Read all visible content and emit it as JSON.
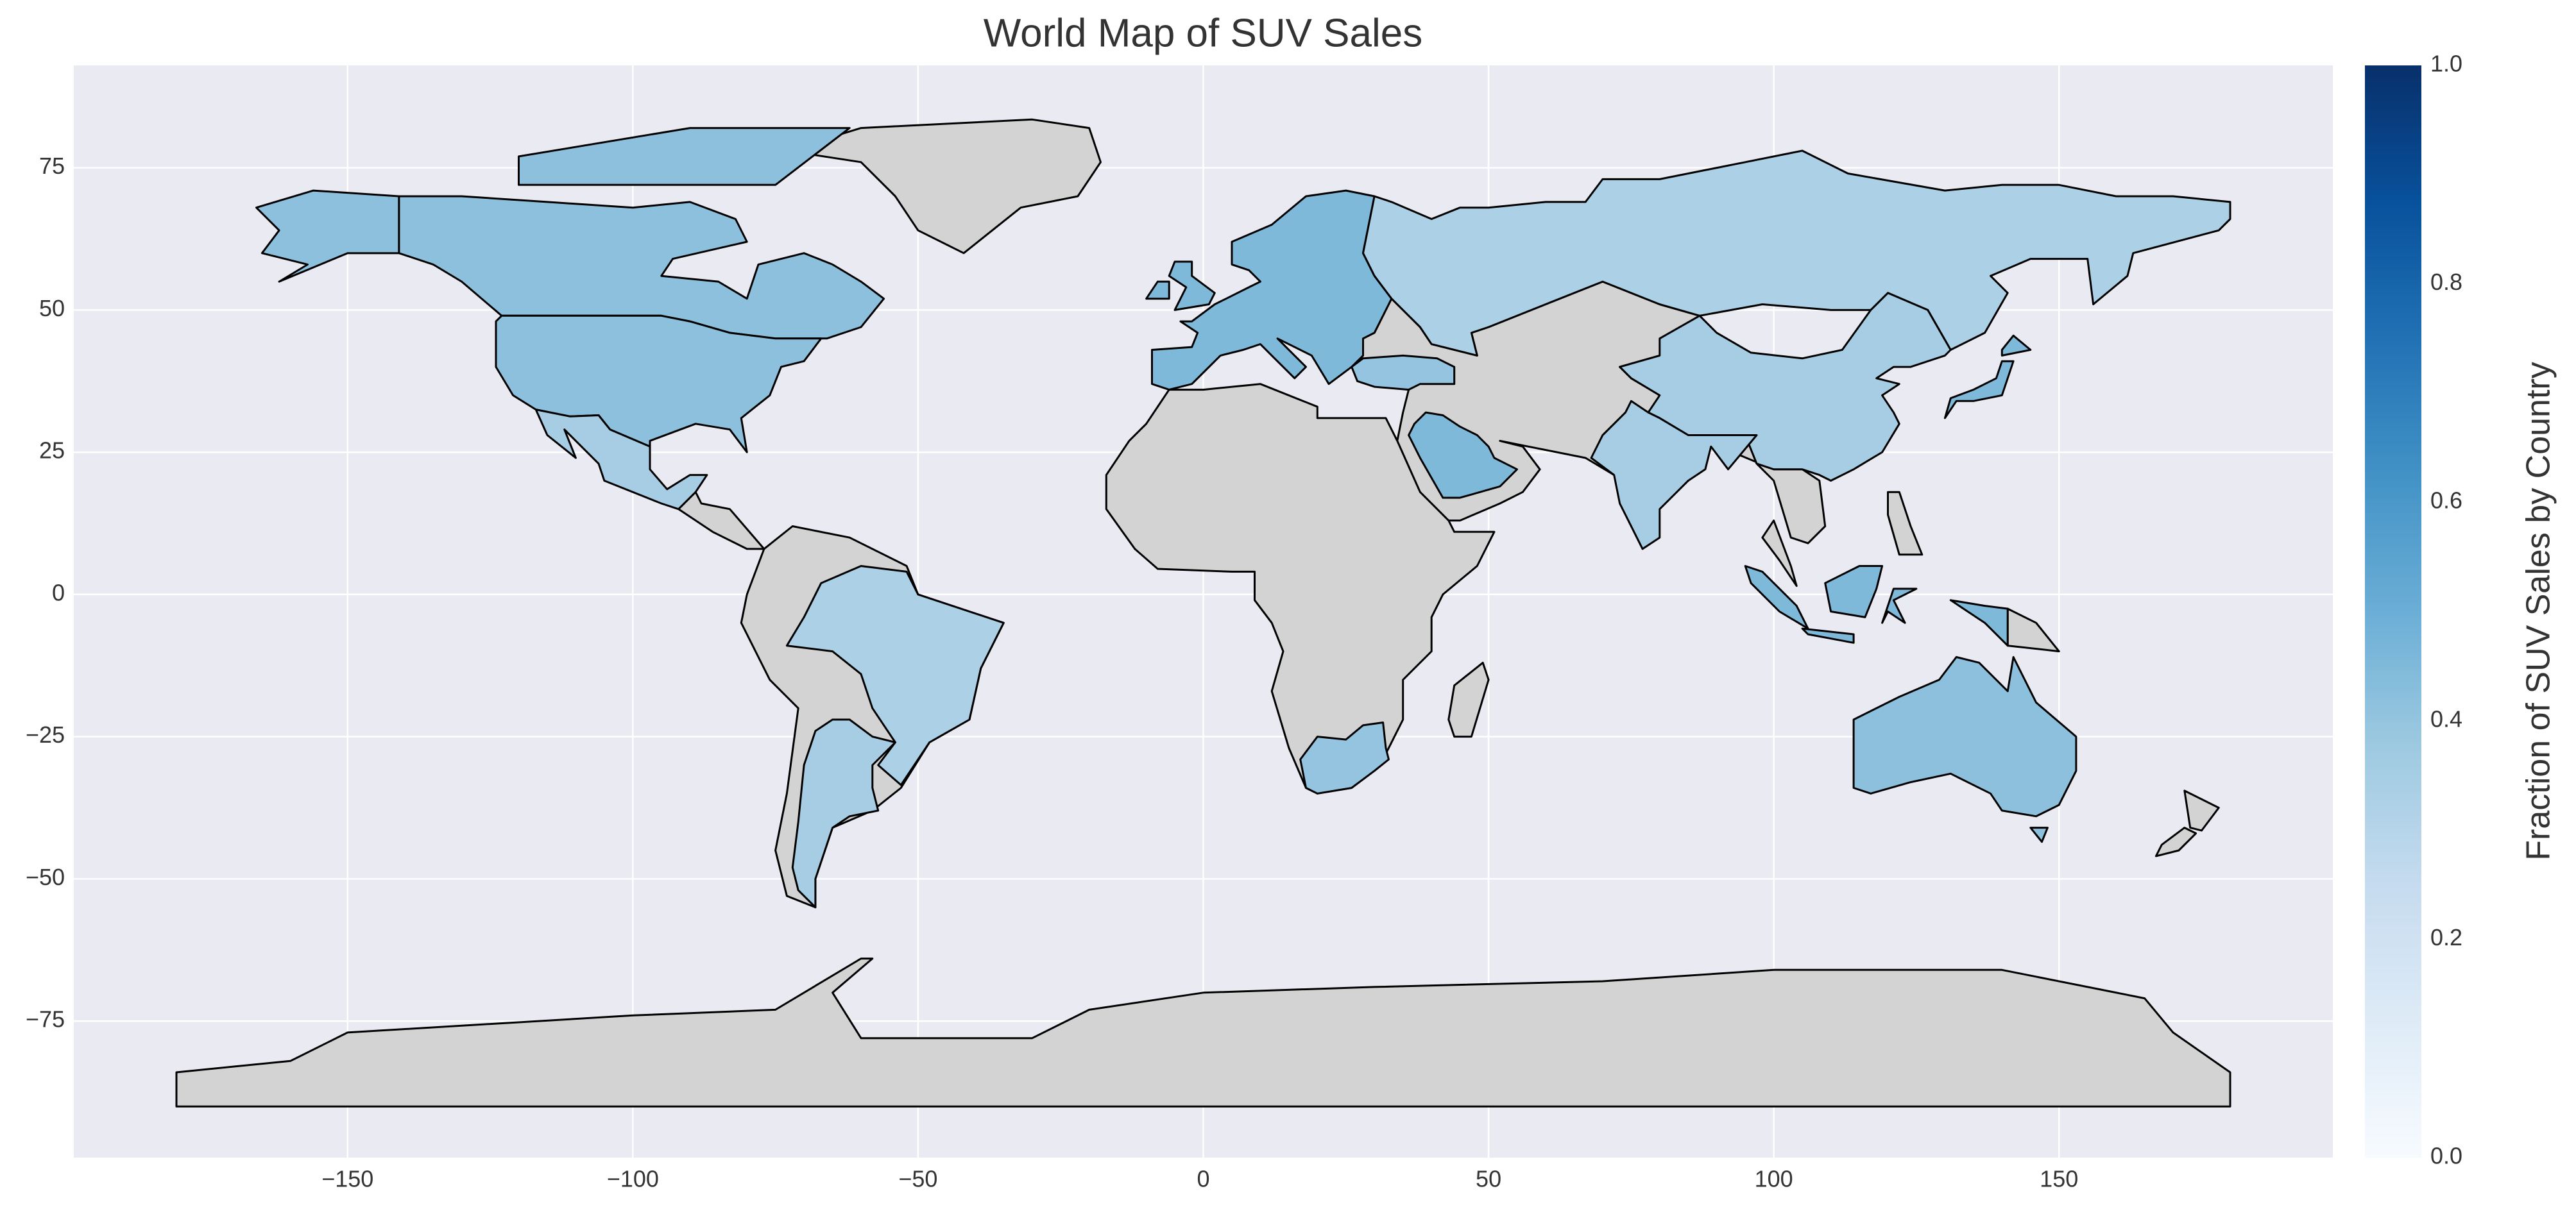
{
  "chart_data": {
    "type": "choropleth",
    "title": "World Map of SUV Sales",
    "colorbar_label": "Fraction of SUV Sales by Country",
    "colormap": "Blues",
    "missing_color": "#d3d3d3",
    "grid": true,
    "values": [
      0.42,
      0.42,
      0.35,
      0.33,
      0.35,
      0.45,
      0.33,
      0.35,
      0.35,
      0.45,
      0.42,
      0.4,
      0.45,
      0.45,
      0.4
    ],
    "xlim": [
      -198,
      198
    ],
    "ylim": [
      -99,
      93
    ],
    "xticks": [
      {
        "value": -150,
        "label": "−150"
      },
      {
        "value": -100,
        "label": "−100"
      },
      {
        "value": -50,
        "label": "−50"
      },
      0,
      50,
      100,
      150
    ],
    "yticks": [
      {
        "value": -75,
        "label": "−75"
      },
      {
        "value": -50,
        "label": "−50"
      },
      {
        "value": -25,
        "label": "−25"
      },
      0,
      25,
      50,
      75
    ],
    "clim": [
      0,
      1
    ],
    "cticks": [
      {
        "value": 0,
        "label": "0.0"
      },
      0.2,
      0.4,
      0.6,
      0.8,
      {
        "value": 1,
        "label": "1.0"
      }
    ]
  }
}
